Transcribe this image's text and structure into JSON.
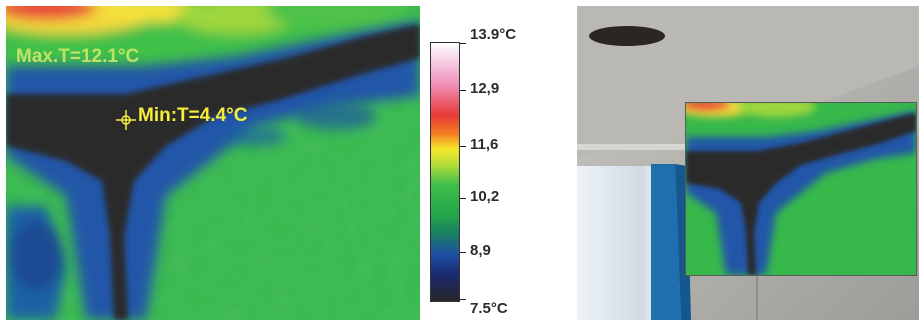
{
  "thermal": {
    "max_label": "Max.T=12.1°C",
    "min_label": "Min:T=4.4°C"
  },
  "scale": {
    "labels": [
      "13.9°C",
      "12,9",
      "11,6",
      "10,2",
      "8,9",
      "7.5°C"
    ],
    "colors": {
      "hot": "#e83a3a",
      "warm": "#f5e62a",
      "mid": "#3fbe4a",
      "cool": "#1f4fa5",
      "cold": "#262626"
    }
  }
}
